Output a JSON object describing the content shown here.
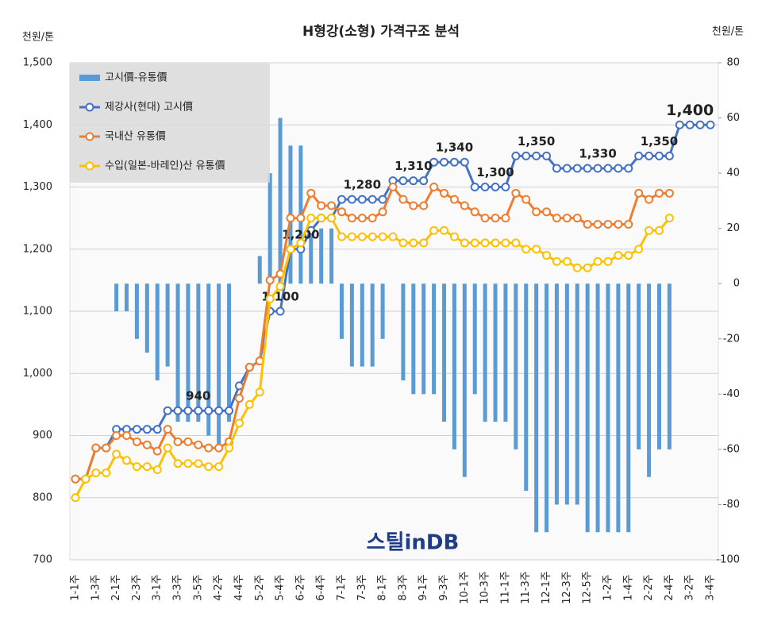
{
  "chart_data": {
    "type": "combo",
    "title": "H형강(소형) 가격구조 분석",
    "y_label": "천원/톤",
    "y2_label": "천원/톤",
    "watermark": "스틸inDB",
    "categories": [
      "1-1주",
      null,
      "1-3주",
      null,
      "2-1주",
      null,
      "2-3주",
      null,
      "3-1주",
      null,
      "3-3주",
      null,
      "3-5주",
      null,
      "4-2주",
      null,
      "4-4주",
      null,
      "5-2주",
      null,
      "5-4주",
      null,
      "6-2주",
      null,
      "6-4주",
      null,
      "7-1주",
      null,
      "7-3주",
      null,
      "8-1주",
      null,
      "8-3주",
      null,
      "9-1주",
      null,
      "9-3주",
      null,
      "10-1주",
      null,
      "10-3주",
      null,
      "11-1주",
      null,
      "11-3주",
      null,
      "12-1주",
      null,
      "12-3주",
      null,
      "12-5주",
      null,
      "1-2주",
      null,
      "1-4주",
      null,
      "2-2주",
      null,
      "2-4주",
      null,
      "3-2주",
      null,
      "3-4주"
    ],
    "ylim": [
      700,
      1500
    ],
    "yticks": [
      700,
      800,
      900,
      {
        "value": 1000,
        "label": "1,000"
      },
      {
        "value": 1100,
        "label": "1,100"
      },
      {
        "value": 1200,
        "label": "1,200"
      },
      {
        "value": 1300,
        "label": "1,300"
      },
      {
        "value": 1400,
        "label": "1,400"
      },
      {
        "value": 1500,
        "label": "1,500"
      }
    ],
    "y2lim": [
      -100,
      80
    ],
    "y2ticks": [
      -100,
      -80,
      -60,
      -40,
      -20,
      0,
      20,
      40,
      60,
      80
    ],
    "grid": true,
    "legend": "upper left",
    "series": [
      {
        "name": "고시價-유통價",
        "type": "bar",
        "axis": "y2",
        "color": "#5b9bd5",
        "values": [
          null,
          null,
          null,
          null,
          -10,
          -10,
          -20,
          -25,
          -35,
          -30,
          -50,
          -50,
          -50,
          -55,
          -60,
          -50,
          null,
          null,
          10,
          40,
          60,
          50,
          50,
          20,
          20,
          20,
          -20,
          -30,
          -30,
          -30,
          -20,
          null,
          -35,
          -40,
          -40,
          -40,
          -50,
          -60,
          -70,
          -40,
          -50,
          -50,
          -50,
          -60,
          -75,
          -90,
          -90,
          -80,
          -80,
          -80,
          -90,
          -90,
          -90,
          -90,
          -90,
          -60,
          -70,
          -60,
          -60,
          null,
          null,
          null,
          null
        ]
      },
      {
        "name": "제강사(현대) 고시價",
        "type": "line",
        "color": "#4472c4",
        "values": [
          830,
          830,
          880,
          880,
          910,
          910,
          910,
          910,
          910,
          940,
          940,
          940,
          940,
          940,
          940,
          940,
          980,
          1010,
          1020,
          1100,
          1100,
          1200,
          1200,
          1230,
          1250,
          1250,
          1280,
          1280,
          1280,
          1280,
          1280,
          1310,
          1310,
          1310,
          1310,
          1340,
          1340,
          1340,
          1340,
          1300,
          1300,
          1300,
          1300,
          1350,
          1350,
          1350,
          1350,
          1330,
          1330,
          1330,
          1330,
          1330,
          1330,
          1330,
          1330,
          1350,
          1350,
          1350,
          1350,
          1400,
          1400,
          1400,
          1400
        ],
        "value_labels": [
          null,
          null,
          null,
          null,
          null,
          null,
          null,
          null,
          null,
          null,
          null,
          null,
          "940",
          null,
          null,
          null,
          null,
          null,
          null,
          null,
          "1,100",
          null,
          "1,200",
          null,
          null,
          null,
          null,
          null,
          "1,280",
          null,
          null,
          null,
          null,
          "1,310",
          null,
          null,
          null,
          "1,340",
          null,
          null,
          null,
          "1,300",
          null,
          null,
          null,
          "1,350",
          null,
          null,
          null,
          null,
          null,
          "1,330",
          null,
          null,
          null,
          null,
          null,
          "1,350",
          null,
          null,
          "1,400",
          null,
          null
        ]
      },
      {
        "name": "국내산 유통價",
        "type": "line",
        "color": "#ed7d31",
        "values": [
          830,
          830,
          880,
          880,
          900,
          900,
          890,
          885,
          875,
          910,
          890,
          890,
          885,
          880,
          880,
          890,
          960,
          1010,
          1020,
          1150,
          1160,
          1250,
          1250,
          1290,
          1270,
          1270,
          1260,
          1250,
          1250,
          1250,
          1260,
          1300,
          1280,
          1270,
          1270,
          1300,
          1290,
          1280,
          1270,
          1260,
          1250,
          1250,
          1250,
          1290,
          1280,
          1260,
          1260,
          1250,
          1250,
          1250,
          1240,
          1240,
          1240,
          1240,
          1240,
          1290,
          1280,
          1290,
          1290,
          null,
          null,
          null,
          null
        ]
      },
      {
        "name": "수입(일본-바레인)산 유통價",
        "type": "line",
        "color": "#ffc000",
        "values": [
          800,
          830,
          840,
          840,
          870,
          860,
          850,
          850,
          845,
          880,
          855,
          855,
          855,
          850,
          850,
          880,
          920,
          950,
          970,
          1120,
          1140,
          1200,
          1210,
          1250,
          1250,
          1250,
          1220,
          1220,
          1220,
          1220,
          1220,
          1220,
          1210,
          1210,
          1210,
          1230,
          1230,
          1220,
          1210,
          1210,
          1210,
          1210,
          1210,
          1210,
          1200,
          1200,
          1190,
          1180,
          1180,
          1170,
          1170,
          1180,
          1180,
          1190,
          1190,
          1200,
          1230,
          1230,
          1250,
          null,
          null,
          null,
          null
        ]
      }
    ]
  }
}
